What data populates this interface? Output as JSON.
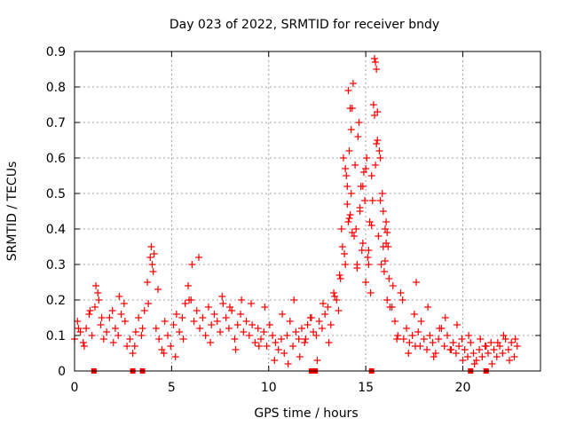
{
  "chart_data": {
    "type": "scatter",
    "title": "Day 023 of 2022, SRMTID for receiver bndy",
    "xlabel": "GPS time / hours",
    "ylabel": "SRMTID / TECUs",
    "xlim": [
      0,
      24
    ],
    "ylim": [
      0,
      0.9
    ],
    "xticks": [
      0,
      5,
      10,
      15,
      20
    ],
    "xtick_labels": [
      "0",
      "5",
      "10",
      "15",
      "20"
    ],
    "yticks": [
      0,
      0.1,
      0.2,
      0.3,
      0.4,
      0.5,
      0.6,
      0.7,
      0.8,
      0.9
    ],
    "ytick_labels": [
      "0",
      "0.1",
      "0.2",
      "0.3",
      "0.4",
      "0.5",
      "0.6",
      "0.7",
      "0.8",
      "0.9"
    ],
    "grid": true,
    "marker": "plus",
    "color": "#ff0000",
    "series": [
      {
        "name": "SRMTID",
        "x": [
          0.0,
          0.15,
          0.3,
          0.45,
          0.6,
          0.75,
          0.9,
          1.05,
          1.2,
          1.35,
          1.5,
          1.65,
          1.8,
          1.95,
          2.1,
          2.25,
          2.4,
          2.55,
          2.7,
          2.85,
          3.0,
          3.15,
          3.3,
          3.45,
          3.6,
          3.75,
          3.9,
          4.05,
          4.2,
          4.35,
          4.5,
          4.65,
          4.8,
          4.95,
          5.1,
          5.25,
          5.4,
          5.55,
          5.7,
          5.85,
          6.0,
          6.15,
          6.3,
          6.45,
          6.6,
          6.75,
          6.9,
          7.05,
          7.2,
          7.35,
          7.5,
          7.65,
          7.8,
          7.95,
          8.1,
          8.25,
          8.4,
          8.55,
          8.7,
          8.85,
          9.0,
          9.15,
          9.3,
          9.45,
          9.6,
          9.75,
          9.9,
          10.05,
          10.2,
          10.35,
          10.5,
          10.65,
          10.8,
          10.95,
          11.1,
          11.25,
          11.4,
          11.55,
          11.7,
          11.85,
          12.0,
          12.15,
          12.3,
          12.45,
          12.6,
          12.75,
          12.9,
          13.05,
          13.2,
          13.35,
          13.5,
          13.65,
          13.8,
          13.95,
          14.1,
          14.25,
          14.4,
          14.55,
          14.7,
          14.85,
          15.0,
          15.15,
          15.3,
          15.45,
          15.6,
          15.75,
          15.9,
          16.05,
          16.2,
          16.35,
          16.5,
          16.65,
          16.8,
          16.95,
          17.1,
          17.25,
          17.4,
          17.55,
          17.7,
          17.85,
          18.0,
          18.15,
          18.3,
          18.45,
          18.6,
          18.75,
          18.9,
          19.05,
          19.2,
          19.35,
          19.5,
          19.65,
          19.8,
          19.95,
          20.1,
          20.25,
          20.4,
          20.55,
          20.7,
          20.85,
          21.0,
          21.15,
          21.3,
          21.45,
          21.6,
          21.75,
          21.9,
          22.05,
          22.2,
          22.35,
          22.5,
          22.65,
          22.8,
          0.2,
          0.5,
          0.8,
          1.1,
          1.25,
          1.4,
          2.0,
          2.3,
          2.6,
          3.1,
          3.5,
          3.8,
          3.95,
          4.0,
          4.1,
          4.3,
          4.6,
          5.2,
          5.6,
          5.9,
          6.05,
          6.4,
          7.0,
          7.6,
          8.0,
          8.3,
          8.6,
          9.1,
          9.5,
          9.8,
          10.3,
          10.7,
          11.0,
          11.3,
          11.6,
          11.9,
          12.2,
          12.5,
          12.8,
          13.1,
          13.4,
          13.6,
          13.7,
          13.75,
          13.85,
          13.9,
          14.0,
          14.05,
          14.15,
          14.2,
          14.3,
          14.35,
          14.45,
          14.5,
          14.6,
          14.65,
          14.75,
          14.8,
          14.9,
          14.95,
          15.05,
          15.1,
          15.2,
          15.25,
          15.35,
          15.4,
          15.5,
          15.55,
          15.65,
          15.7,
          15.8,
          15.85,
          15.95,
          16.0,
          16.1,
          16.15,
          16.25,
          16.4,
          16.6,
          16.9,
          17.2,
          17.5,
          17.6,
          17.8,
          18.2,
          18.5,
          18.8,
          19.1,
          19.4,
          19.7,
          20.0,
          20.3,
          20.6,
          20.9,
          21.2,
          21.5,
          21.8,
          22.1,
          22.4,
          22.7,
          14.1,
          14.2,
          14.25,
          15.45,
          15.5,
          15.55,
          15.6,
          13.95,
          14.05,
          14.15,
          14.3,
          14.55,
          14.7,
          14.85,
          15.0,
          15.15,
          15.3,
          15.75,
          15.9,
          16.0,
          16.05,
          16.1
        ],
        "y": [
          0.09,
          0.14,
          0.11,
          0.08,
          0.12,
          0.16,
          0.1,
          0.18,
          0.22,
          0.13,
          0.09,
          0.11,
          0.15,
          0.17,
          0.12,
          0.1,
          0.16,
          0.19,
          0.07,
          0.09,
          0.05,
          0.11,
          0.15,
          0.1,
          0.17,
          0.25,
          0.32,
          0.28,
          0.12,
          0.09,
          0.06,
          0.14,
          0.1,
          0.07,
          0.13,
          0.16,
          0.11,
          0.15,
          0.19,
          0.24,
          0.2,
          0.14,
          0.17,
          0.12,
          0.15,
          0.1,
          0.18,
          0.13,
          0.16,
          0.14,
          0.11,
          0.19,
          0.15,
          0.12,
          0.17,
          0.09,
          0.13,
          0.16,
          0.11,
          0.14,
          0.1,
          0.13,
          0.08,
          0.12,
          0.09,
          0.11,
          0.07,
          0.13,
          0.1,
          0.08,
          0.06,
          0.09,
          0.05,
          0.1,
          0.14,
          0.07,
          0.11,
          0.09,
          0.12,
          0.08,
          0.13,
          0.15,
          0.11,
          0.1,
          0.14,
          0.12,
          0.16,
          0.18,
          0.13,
          0.22,
          0.2,
          0.27,
          0.35,
          0.3,
          0.42,
          0.5,
          0.38,
          0.3,
          0.45,
          0.36,
          0.25,
          0.3,
          0.55,
          0.72,
          0.65,
          0.48,
          0.35,
          0.42,
          0.26,
          0.18,
          0.14,
          0.1,
          0.22,
          0.09,
          0.12,
          0.08,
          0.1,
          0.07,
          0.11,
          0.14,
          0.09,
          0.06,
          0.1,
          0.08,
          0.05,
          0.09,
          0.12,
          0.07,
          0.1,
          0.06,
          0.08,
          0.05,
          0.07,
          0.09,
          0.06,
          0.04,
          0.08,
          0.05,
          0.03,
          0.06,
          0.04,
          0.07,
          0.05,
          0.08,
          0.06,
          0.04,
          0.07,
          0.05,
          0.09,
          0.06,
          0.08,
          0.04,
          0.07,
          0.12,
          0.07,
          0.17,
          0.24,
          0.2,
          0.15,
          0.08,
          0.21,
          0.14,
          0.07,
          0.12,
          0.19,
          0.35,
          0.3,
          0.33,
          0.23,
          0.05,
          0.04,
          0.09,
          0.2,
          0.3,
          0.32,
          0.08,
          0.21,
          0.18,
          0.06,
          0.2,
          0.19,
          0.07,
          0.18,
          0.03,
          0.16,
          0.02,
          0.2,
          0.04,
          0.09,
          0.15,
          0.03,
          0.19,
          0.08,
          0.21,
          0.17,
          0.26,
          0.4,
          0.6,
          0.33,
          0.55,
          0.52,
          0.62,
          0.44,
          0.74,
          0.81,
          0.58,
          0.4,
          0.66,
          0.7,
          0.52,
          0.34,
          0.56,
          0.48,
          0.6,
          0.32,
          0.42,
          0.22,
          0.48,
          0.75,
          0.58,
          0.85,
          0.38,
          0.62,
          0.3,
          0.5,
          0.28,
          0.4,
          0.2,
          0.35,
          0.18,
          0.24,
          0.09,
          0.2,
          0.05,
          0.16,
          0.25,
          0.07,
          0.18,
          0.04,
          0.12,
          0.15,
          0.06,
          0.13,
          0.03,
          0.1,
          0.02,
          0.09,
          0.07,
          0.02,
          0.08,
          0.1,
          0.03,
          0.09,
          0.79,
          0.74,
          0.68,
          0.88,
          0.87,
          0.64,
          0.73,
          0.57,
          0.47,
          0.43,
          0.39,
          0.29,
          0.46,
          0.52,
          0.57,
          0.34,
          0.41,
          0.6,
          0.45,
          0.31,
          0.36,
          0.39
        ]
      }
    ],
    "baseline_markers": {
      "name": "zero-value markers",
      "x": [
        1.0,
        3.0,
        3.5,
        12.2,
        12.4,
        15.3,
        20.4,
        21.2
      ],
      "y": [
        0,
        0,
        0,
        0,
        0,
        0,
        0,
        0
      ]
    }
  }
}
